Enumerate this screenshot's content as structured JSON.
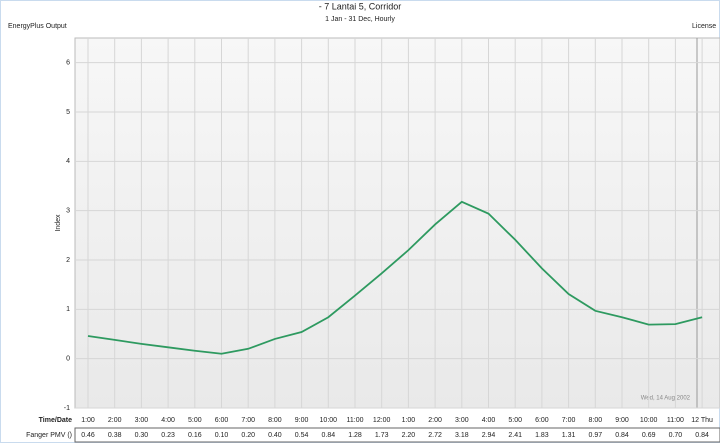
{
  "chart_data": {
    "type": "line",
    "title": "- 7 Lantai 5, Corridor",
    "subtitle": "1 Jan - 31 Dec, Hourly",
    "source_label": "EnergyPlus Output",
    "license_label": "License",
    "ylabel": "Index",
    "xlabel": "Time/Date",
    "annotation": "Wed, 14 Aug 2002",
    "categories": [
      "1:00",
      "2:00",
      "3:00",
      "4:00",
      "5:00",
      "6:00",
      "7:00",
      "8:00",
      "9:00",
      "10:00",
      "11:00",
      "12:00",
      "1:00",
      "2:00",
      "3:00",
      "4:00",
      "5:00",
      "6:00",
      "7:00",
      "8:00",
      "9:00",
      "10:00",
      "11:00",
      "12 Thu"
    ],
    "series": [
      {
        "name": "Fanger PMV ()",
        "color": "#2e9a60",
        "values": [
          0.46,
          0.38,
          0.3,
          0.23,
          0.16,
          0.1,
          0.2,
          0.4,
          0.54,
          0.84,
          1.28,
          1.73,
          2.2,
          2.72,
          3.18,
          2.94,
          2.41,
          1.83,
          1.31,
          0.97,
          0.84,
          0.69,
          0.7,
          0.84
        ],
        "value_labels": [
          "0.46",
          "0.38",
          "0.30",
          "0.23",
          "0.16",
          "0.10",
          "0.20",
          "0.40",
          "0.54",
          "0.84",
          "1.28",
          "1.73",
          "2.20",
          "2.72",
          "3.18",
          "2.94",
          "2.41",
          "1.83",
          "1.31",
          "0.97",
          "0.84",
          "0.69",
          "0.70",
          "0.84"
        ]
      }
    ],
    "ylim": [
      -1,
      6.5
    ],
    "yticks": [
      -1,
      0,
      1,
      2,
      3,
      4,
      5,
      6
    ],
    "grid": true
  }
}
